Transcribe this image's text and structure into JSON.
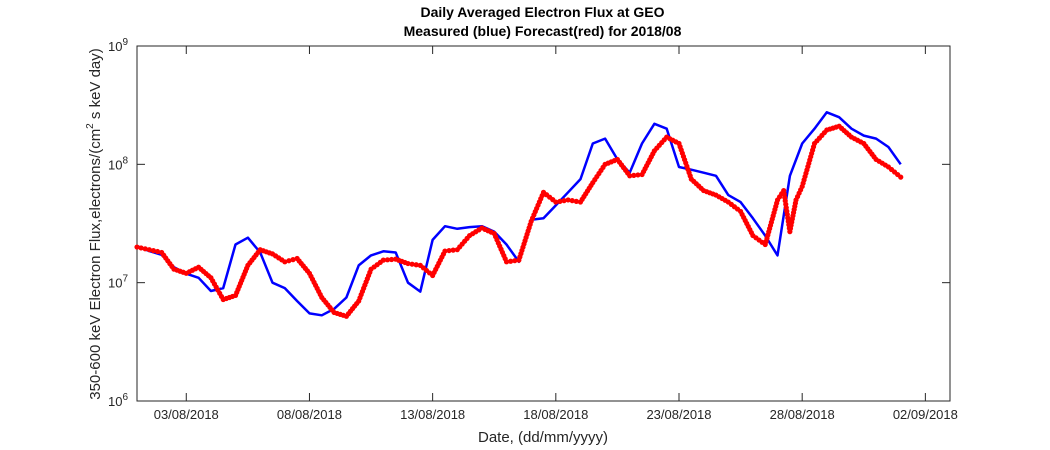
{
  "chart_data": {
    "type": "line",
    "title": "Daily Averaged Electron Flux at GEO",
    "subtitle": "Measured (blue) Forecast(red) for 2018/08",
    "xlabel": "Date, (dd/mm/yyyy)",
    "ylabel": "350-600 keV Electron Flux,electrons/(cm^2 s keV day)",
    "y_scale": "log",
    "ylim": [
      1000000,
      1000000000
    ],
    "xlim": [
      "2018-08-01T00:00",
      "2018-09-03T00:00"
    ],
    "x_ticks": [
      "03/08/2018",
      "08/08/2018",
      "13/08/2018",
      "18/08/2018",
      "23/08/2018",
      "28/08/2018",
      "02/09/2018"
    ],
    "y_ticks": [
      1000000,
      10000000,
      100000000,
      1000000000
    ],
    "colors": {
      "measured": "#0000ff",
      "forecast": "#ff0000",
      "axis": "#262626"
    },
    "series": [
      {
        "name": "Measured (blue)",
        "style": "line",
        "points": [
          [
            "2018-08-01T00:00",
            20400000
          ],
          [
            "2018-08-01T12:00",
            18500000
          ],
          [
            "2018-08-02T00:00",
            17200000
          ],
          [
            "2018-08-02T12:00",
            13500000
          ],
          [
            "2018-08-03T00:00",
            11900000
          ],
          [
            "2018-08-03T12:00",
            11000000
          ],
          [
            "2018-08-04T00:00",
            8500000
          ],
          [
            "2018-08-04T12:00",
            9000000
          ],
          [
            "2018-08-05T00:00",
            21000000
          ],
          [
            "2018-08-05T12:00",
            24000000
          ],
          [
            "2018-08-06T00:00",
            18000000
          ],
          [
            "2018-08-06T12:00",
            10000000
          ],
          [
            "2018-08-07T00:00",
            9000000
          ],
          [
            "2018-08-07T12:00",
            7000000
          ],
          [
            "2018-08-08T00:00",
            5500000
          ],
          [
            "2018-08-08T12:00",
            5300000
          ],
          [
            "2018-08-09T00:00",
            6000000
          ],
          [
            "2018-08-09T12:00",
            7500000
          ],
          [
            "2018-08-10T00:00",
            14000000
          ],
          [
            "2018-08-10T12:00",
            17000000
          ],
          [
            "2018-08-11T00:00",
            18400000
          ],
          [
            "2018-08-11T12:00",
            18000000
          ],
          [
            "2018-08-12T00:00",
            10000000
          ],
          [
            "2018-08-12T12:00",
            8400000
          ],
          [
            "2018-08-13T00:00",
            23000000
          ],
          [
            "2018-08-13T12:00",
            30000000
          ],
          [
            "2018-08-14T00:00",
            28500000
          ],
          [
            "2018-08-14T12:00",
            29500000
          ],
          [
            "2018-08-15T00:00",
            30000000
          ],
          [
            "2018-08-15T12:00",
            27000000
          ],
          [
            "2018-08-16T00:00",
            21000000
          ],
          [
            "2018-08-16T12:00",
            15000000
          ],
          [
            "2018-08-17T00:00",
            34000000
          ],
          [
            "2018-08-17T12:00",
            35000000
          ],
          [
            "2018-08-18T00:00",
            45000000
          ],
          [
            "2018-08-18T12:00",
            58000000
          ],
          [
            "2018-08-19T00:00",
            75000000
          ],
          [
            "2018-08-19T12:00",
            150000000
          ],
          [
            "2018-08-20T00:00",
            165000000
          ],
          [
            "2018-08-20T12:00",
            110000000
          ],
          [
            "2018-08-21T00:00",
            85000000
          ],
          [
            "2018-08-21T12:00",
            150000000
          ],
          [
            "2018-08-22T00:00",
            220000000
          ],
          [
            "2018-08-22T12:00",
            200000000
          ],
          [
            "2018-08-23T00:00",
            95000000
          ],
          [
            "2018-08-23T12:00",
            90000000
          ],
          [
            "2018-08-24T00:00",
            85000000
          ],
          [
            "2018-08-24T12:00",
            80000000
          ],
          [
            "2018-08-25T00:00",
            55000000
          ],
          [
            "2018-08-25T12:00",
            48000000
          ],
          [
            "2018-08-26T00:00",
            35000000
          ],
          [
            "2018-08-26T12:00",
            25000000
          ],
          [
            "2018-08-27T00:00",
            17000000
          ],
          [
            "2018-08-27T12:00",
            80000000
          ],
          [
            "2018-08-28T00:00",
            150000000
          ],
          [
            "2018-08-28T12:00",
            200000000
          ],
          [
            "2018-08-29T00:00",
            275000000
          ],
          [
            "2018-08-29T12:00",
            250000000
          ],
          [
            "2018-08-30T00:00",
            200000000
          ],
          [
            "2018-08-30T12:00",
            175000000
          ],
          [
            "2018-08-31T00:00",
            165000000
          ],
          [
            "2018-08-31T12:00",
            140000000
          ],
          [
            "2018-09-01T00:00",
            100000000
          ]
        ]
      },
      {
        "name": "Forecast(red)",
        "style": "dots",
        "points": [
          [
            "2018-08-01T00:00",
            20000000
          ],
          [
            "2018-08-01T12:00",
            19000000
          ],
          [
            "2018-08-02T00:00",
            18000000
          ],
          [
            "2018-08-02T12:00",
            13000000
          ],
          [
            "2018-08-03T00:00",
            12000000
          ],
          [
            "2018-08-03T12:00",
            13500000
          ],
          [
            "2018-08-04T00:00",
            11000000
          ],
          [
            "2018-08-04T12:00",
            7200000
          ],
          [
            "2018-08-05T00:00",
            7800000
          ],
          [
            "2018-08-05T12:00",
            14000000
          ],
          [
            "2018-08-06T00:00",
            19000000
          ],
          [
            "2018-08-06T12:00",
            17500000
          ],
          [
            "2018-08-07T00:00",
            15000000
          ],
          [
            "2018-08-07T12:00",
            16000000
          ],
          [
            "2018-08-08T00:00",
            12000000
          ],
          [
            "2018-08-08T12:00",
            7500000
          ],
          [
            "2018-08-09T00:00",
            5600000
          ],
          [
            "2018-08-09T12:00",
            5200000
          ],
          [
            "2018-08-10T00:00",
            7000000
          ],
          [
            "2018-08-10T12:00",
            13000000
          ],
          [
            "2018-08-11T00:00",
            15500000
          ],
          [
            "2018-08-11T12:00",
            15800000
          ],
          [
            "2018-08-12T00:00",
            14500000
          ],
          [
            "2018-08-12T12:00",
            14000000
          ],
          [
            "2018-08-13T00:00",
            11500000
          ],
          [
            "2018-08-13T12:00",
            18500000
          ],
          [
            "2018-08-14T00:00",
            19000000
          ],
          [
            "2018-08-14T12:00",
            25000000
          ],
          [
            "2018-08-15T00:00",
            29000000
          ],
          [
            "2018-08-15T12:00",
            26000000
          ],
          [
            "2018-08-16T00:00",
            15000000
          ],
          [
            "2018-08-16T12:00",
            15500000
          ],
          [
            "2018-08-17T00:00",
            33000000
          ],
          [
            "2018-08-17T12:00",
            58000000
          ],
          [
            "2018-08-18T00:00",
            48000000
          ],
          [
            "2018-08-18T12:00",
            50000000
          ],
          [
            "2018-08-19T00:00",
            48000000
          ],
          [
            "2018-08-19T12:00",
            70000000
          ],
          [
            "2018-08-20T00:00",
            100000000
          ],
          [
            "2018-08-20T12:00",
            110000000
          ],
          [
            "2018-08-21T00:00",
            80000000
          ],
          [
            "2018-08-21T12:00",
            82000000
          ],
          [
            "2018-08-22T00:00",
            130000000
          ],
          [
            "2018-08-22T12:00",
            170000000
          ],
          [
            "2018-08-23T00:00",
            150000000
          ],
          [
            "2018-08-23T12:00",
            75000000
          ],
          [
            "2018-08-24T00:00",
            60000000
          ],
          [
            "2018-08-24T12:00",
            55000000
          ],
          [
            "2018-08-25T00:00",
            48000000
          ],
          [
            "2018-08-25T12:00",
            40000000
          ],
          [
            "2018-08-26T00:00",
            25000000
          ],
          [
            "2018-08-26T12:00",
            21000000
          ],
          [
            "2018-08-27T00:00",
            50000000
          ],
          [
            "2018-08-27T06:00",
            60000000
          ],
          [
            "2018-08-27T12:00",
            27000000
          ],
          [
            "2018-08-27T18:00",
            50000000
          ],
          [
            "2018-08-28T00:00",
            65000000
          ],
          [
            "2018-08-28T12:00",
            150000000
          ],
          [
            "2018-08-29T00:00",
            195000000
          ],
          [
            "2018-08-29T12:00",
            210000000
          ],
          [
            "2018-08-30T00:00",
            170000000
          ],
          [
            "2018-08-30T12:00",
            150000000
          ],
          [
            "2018-08-31T00:00",
            110000000
          ],
          [
            "2018-08-31T12:00",
            95000000
          ],
          [
            "2018-09-01T00:00",
            78000000
          ]
        ]
      }
    ]
  }
}
